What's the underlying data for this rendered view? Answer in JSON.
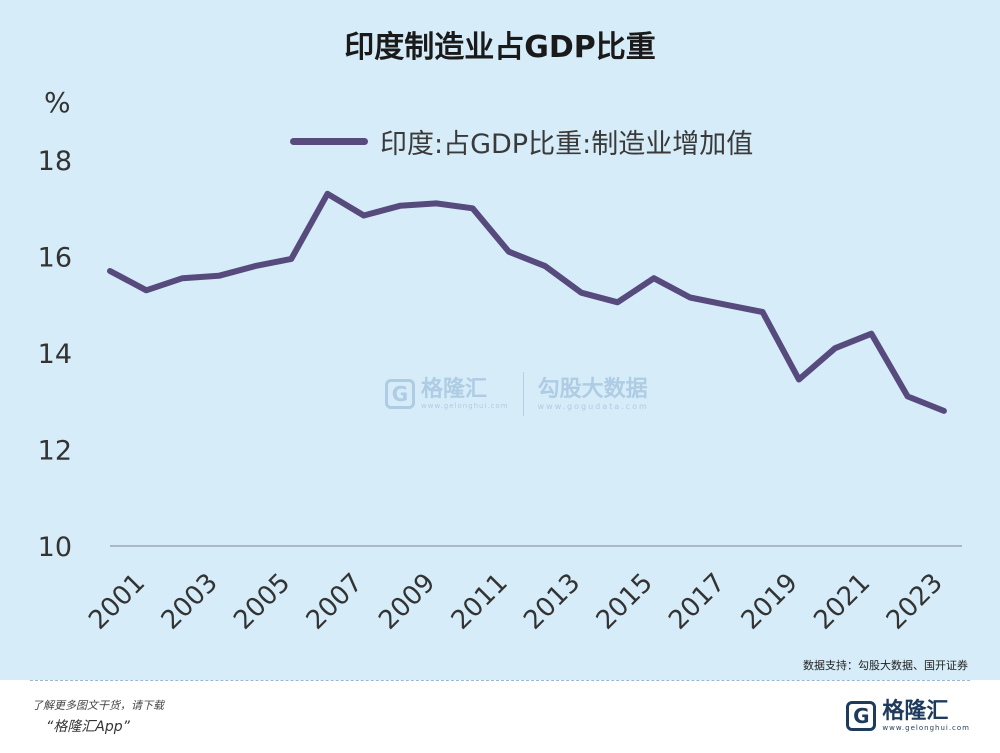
{
  "chart_data": {
    "type": "line",
    "title": "印度制造业占GDP比重",
    "ylabel": "%",
    "xlabel": "",
    "ylim": [
      10,
      18
    ],
    "yticks": [
      10,
      12,
      14,
      16,
      18
    ],
    "grid": false,
    "legend_position": "top",
    "x_tick_labels": [
      "2001",
      "2003",
      "2005",
      "2007",
      "2009",
      "2011",
      "2013",
      "2015",
      "2017",
      "2019",
      "2021",
      "2023"
    ],
    "x": [
      2000,
      2001,
      2002,
      2003,
      2004,
      2005,
      2006,
      2007,
      2008,
      2009,
      2010,
      2011,
      2012,
      2013,
      2014,
      2015,
      2016,
      2017,
      2018,
      2019,
      2020,
      2021,
      2022,
      2023
    ],
    "series": [
      {
        "name": "印度:占GDP比重:制造业增加值",
        "color": "#574a7c",
        "values": [
          15.7,
          15.3,
          15.55,
          15.6,
          15.8,
          15.95,
          17.3,
          16.85,
          17.05,
          17.1,
          17.0,
          16.1,
          15.8,
          15.25,
          15.05,
          15.55,
          15.15,
          15.0,
          14.85,
          13.45,
          14.1,
          14.4,
          13.1,
          12.8
        ]
      }
    ]
  },
  "watermark": {
    "logo_mark": "G",
    "brand": "格隆汇",
    "brand_url": "www.gelonghui.com",
    "partner": "勾股大数据",
    "partner_url": "www.gogudata.com"
  },
  "source_note": "数据支持：勾股大数据、国开证券",
  "footer": {
    "tagline": "了解更多图文干货，请下载",
    "app_name": "“格隆汇App”",
    "logo_mark": "G",
    "logo_text": "格隆汇",
    "logo_url": "www.gelonghui.com"
  }
}
